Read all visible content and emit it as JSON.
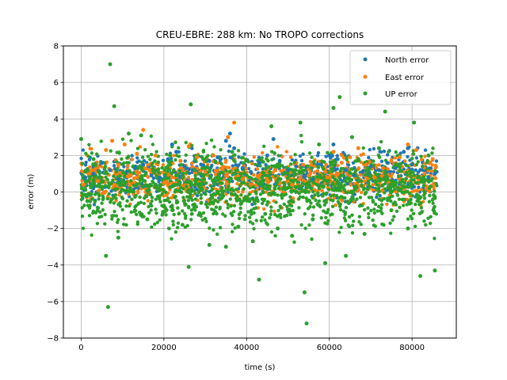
{
  "chart_data": {
    "type": "scatter",
    "title": "CREU-EBRE: 288 km: No TROPO corrections",
    "xlabel": "time (s)",
    "ylabel": "error (m)",
    "xlim": [
      -4300,
      90700
    ],
    "ylim": [
      -8,
      8
    ],
    "xticks": [
      0,
      20000,
      40000,
      60000,
      80000
    ],
    "yticks": [
      -8,
      -6,
      -4,
      -2,
      0,
      2,
      4,
      6,
      8
    ],
    "grid": true,
    "legend_position": "top-right",
    "series": [
      {
        "name": "North error",
        "color": "#1f77b4",
        "x": [
          1000,
          3000,
          5000,
          7000,
          9000,
          11000,
          13000,
          15000,
          17000,
          19000,
          21000,
          22000,
          23000,
          25000,
          27000,
          29000,
          31000,
          33000,
          35000,
          36000,
          37000,
          39000,
          41000,
          43000,
          45000,
          46500,
          48000,
          50000,
          52000,
          54000,
          56000,
          58000,
          60000,
          61000,
          62000,
          64000,
          66000,
          68000,
          70000,
          72000,
          74000,
          76000,
          78000,
          79000,
          80000,
          82000,
          84000,
          85500
        ],
        "values": [
          0.8,
          1.0,
          1.6,
          1.2,
          0.7,
          1.1,
          1.3,
          1.5,
          0.9,
          0.8,
          1.8,
          2.6,
          2.2,
          1.4,
          1.2,
          1.5,
          1.7,
          1.9,
          2.8,
          3.2,
          2.4,
          1.3,
          1.1,
          1.6,
          2.0,
          2.9,
          1.7,
          1.2,
          1.4,
          0.9,
          0.7,
          1.5,
          2.0,
          2.6,
          1.8,
          1.2,
          0.9,
          1.1,
          1.4,
          1.2,
          1.6,
          1.3,
          2.2,
          2.4,
          1.5,
          1.2,
          0.8,
          1.0
        ]
      },
      {
        "name": "East error",
        "color": "#ff7f0e",
        "x": [
          500,
          2000,
          4000,
          6000,
          7500,
          9000,
          10500,
          12000,
          13500,
          15000,
          16500,
          18000,
          20000,
          22000,
          24000,
          26000,
          28000,
          30000,
          32000,
          34000,
          35500,
          37000,
          39000,
          41000,
          43000,
          45000,
          47000,
          49000,
          51000,
          53000,
          55000,
          57000,
          59000,
          61000,
          63000,
          65000,
          67000,
          69000,
          71000,
          73000,
          75000,
          77000,
          79000,
          81000,
          83000,
          85000
        ],
        "values": [
          0.4,
          1.0,
          0.6,
          2.3,
          2.8,
          1.5,
          2.6,
          0.9,
          2.1,
          3.4,
          1.2,
          2.0,
          0.5,
          0.8,
          1.7,
          2.5,
          1.9,
          1.1,
          2.0,
          1.3,
          3.0,
          3.8,
          0.7,
          0.4,
          0.9,
          0.6,
          1.2,
          0.5,
          0.4,
          0.8,
          0.9,
          0.6,
          1.1,
          2.2,
          1.6,
          1.9,
          2.4,
          1.5,
          0.8,
          1.3,
          1.7,
          1.9,
          2.6,
          2.3,
          1.0,
          1.8
        ]
      },
      {
        "name": "UP error",
        "color": "#2ca02c",
        "x": [
          0,
          1500,
          3000,
          4500,
          6000,
          6500,
          7000,
          8000,
          9000,
          10000,
          11500,
          13000,
          14500,
          16000,
          18000,
          20000,
          21500,
          23000,
          24500,
          26000,
          26500,
          27500,
          29000,
          31000,
          33000,
          35000,
          36500,
          38000,
          40000,
          41500,
          43000,
          44500,
          46000,
          47500,
          49000,
          51000,
          53000,
          54000,
          54500,
          56000,
          57500,
          59000,
          61000,
          62500,
          64000,
          65500,
          67000,
          68500,
          70000,
          72000,
          73500,
          75000,
          77000,
          79000,
          80500,
          82000,
          84000,
          85500
        ],
        "values": [
          2.9,
          -0.5,
          1.8,
          0.3,
          -3.5,
          -6.3,
          7.0,
          4.7,
          -2.5,
          0.6,
          3.2,
          -1.0,
          3.1,
          -1.5,
          0.4,
          -0.8,
          2.0,
          0.9,
          -1.8,
          -4.1,
          4.8,
          1.2,
          -0.6,
          -2.9,
          0.8,
          -3.0,
          2.2,
          -1.9,
          -0.4,
          -2.7,
          -4.8,
          -1.2,
          3.6,
          -2.0,
          0.5,
          -2.4,
          3.8,
          -5.5,
          -7.2,
          -1.5,
          2.6,
          -3.9,
          4.6,
          5.2,
          -3.5,
          3.0,
          1.8,
          -2.3,
          0.9,
          2.4,
          4.4,
          -1.0,
          1.5,
          -2.0,
          3.8,
          -4.6,
          2.0,
          -4.3
        ]
      }
    ]
  }
}
